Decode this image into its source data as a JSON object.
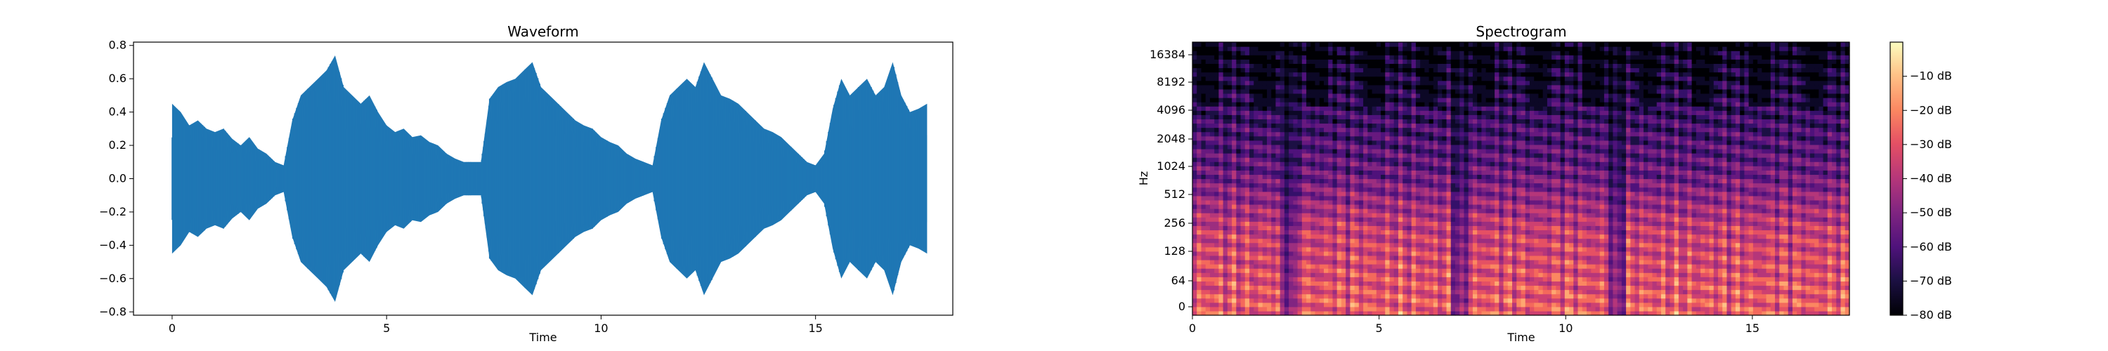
{
  "chart_data": [
    {
      "type": "area",
      "title": "Waveform",
      "xlabel": "Time",
      "ylabel": "",
      "xlim": [
        -0.9,
        18.2
      ],
      "ylim": [
        -0.82,
        0.82
      ],
      "xticks": [
        0,
        5,
        10,
        15
      ],
      "yticks": [
        -0.8,
        -0.6,
        -0.4,
        -0.2,
        0.0,
        0.2,
        0.4,
        0.6,
        0.8
      ],
      "ytick_labels": [
        "−0.8",
        "−0.6",
        "−0.4",
        "−0.2",
        "0.0",
        "0.2",
        "0.4",
        "0.6",
        "0.8"
      ],
      "grid": false,
      "color": "#1f77b4",
      "series": [
        {
          "x": [
            0.0,
            0.2,
            0.4,
            0.6,
            0.8,
            1.0,
            1.2,
            1.4,
            1.6,
            1.8,
            2.0,
            2.2,
            2.4,
            2.6,
            2.8,
            3.0,
            3.2,
            3.4,
            3.6,
            3.8,
            4.0,
            4.2,
            4.4,
            4.6,
            4.8,
            5.0,
            5.2,
            5.4,
            5.6,
            5.8,
            6.0,
            6.2,
            6.4,
            6.6,
            6.8,
            7.0,
            7.2,
            7.4,
            7.6,
            7.8,
            8.0,
            8.2,
            8.4,
            8.6,
            8.8,
            9.0,
            9.2,
            9.4,
            9.6,
            9.8,
            10.0,
            10.2,
            10.4,
            10.6,
            10.8,
            11.0,
            11.2,
            11.4,
            11.6,
            11.8,
            12.0,
            12.2,
            12.4,
            12.6,
            12.8,
            13.0,
            13.2,
            13.4,
            13.6,
            13.8,
            14.0,
            14.2,
            14.4,
            14.6,
            14.8,
            15.0,
            15.2,
            15.4,
            15.6,
            15.8,
            16.0,
            16.2,
            16.4,
            16.6,
            16.8,
            17.0,
            17.2,
            17.4,
            17.6
          ],
          "amplitude": [
            0.45,
            0.4,
            0.32,
            0.35,
            0.3,
            0.28,
            0.3,
            0.24,
            0.2,
            0.25,
            0.18,
            0.15,
            0.1,
            0.08,
            0.35,
            0.5,
            0.55,
            0.6,
            0.65,
            0.74,
            0.55,
            0.5,
            0.45,
            0.5,
            0.4,
            0.32,
            0.28,
            0.3,
            0.25,
            0.26,
            0.22,
            0.2,
            0.15,
            0.12,
            0.1,
            0.1,
            0.1,
            0.48,
            0.55,
            0.58,
            0.6,
            0.65,
            0.7,
            0.55,
            0.5,
            0.45,
            0.4,
            0.35,
            0.32,
            0.3,
            0.25,
            0.22,
            0.2,
            0.15,
            0.12,
            0.1,
            0.08,
            0.35,
            0.5,
            0.55,
            0.6,
            0.55,
            0.7,
            0.6,
            0.5,
            0.48,
            0.45,
            0.4,
            0.35,
            0.3,
            0.28,
            0.25,
            0.2,
            0.15,
            0.1,
            0.08,
            0.15,
            0.42,
            0.6,
            0.5,
            0.55,
            0.6,
            0.5,
            0.55,
            0.7,
            0.5,
            0.4,
            0.42,
            0.45
          ]
        }
      ]
    },
    {
      "type": "heatmap",
      "title": "Spectrogram",
      "xlabel": "Time",
      "ylabel": "Hz",
      "xlim": [
        0,
        17.6
      ],
      "xticks": [
        0,
        5,
        10,
        15
      ],
      "yticks": [
        0,
        64,
        128,
        256,
        512,
        1024,
        2048,
        4096,
        8192,
        16384
      ],
      "y_scale": "log2 (symlog)",
      "grid": false,
      "colormap": "magma",
      "colorbar": {
        "range": [
          -80,
          0
        ],
        "ticks": [
          -80,
          -70,
          -60,
          -50,
          -40,
          -30,
          -20,
          -10
        ],
        "tick_labels": [
          "−80 dB",
          "−70 dB",
          "−60 dB",
          "−50 dB",
          "−40 dB",
          "−30 dB",
          "−20 dB",
          "−10 dB"
        ]
      }
    }
  ]
}
